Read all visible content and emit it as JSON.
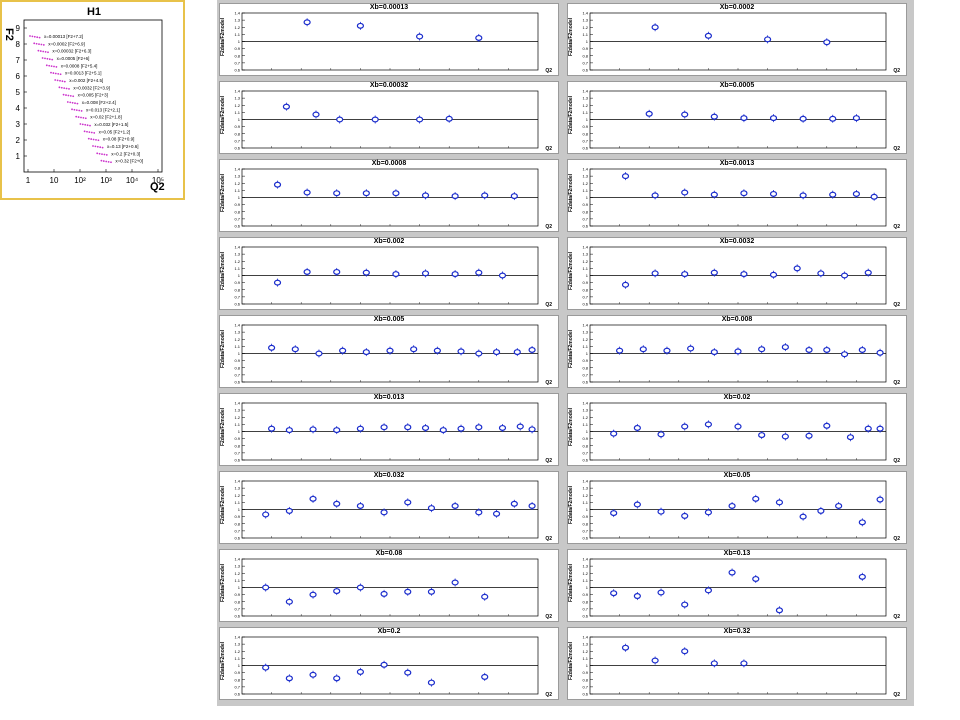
{
  "inset": {
    "title": "H1",
    "y_label": "F2",
    "x_label": "Q2",
    "y_ticks": [
      "1",
      "2",
      "3",
      "4",
      "5",
      "6",
      "7",
      "8",
      "9"
    ],
    "x_ticks": [
      "1",
      "10",
      "10²",
      "10³",
      "10⁴",
      "10⁵"
    ],
    "series_labels": [
      "x=0.00013 [F2+7.2]",
      "x=0.0002 [F2+6.9]",
      "x=0.00032 [F2+6.3]",
      "x=0.0005 [F2+6]",
      "x=0.0008 [F2+5.4]",
      "x=0.0013 [F2+5.1]",
      "x=0.002 [F2+4.5]",
      "x=0.0032 [F2+3.9]",
      "x=0.005 [F2+3]",
      "x=0.008 [F2+2.4]",
      "x=0.013 [F2+2.1]",
      "x=0.02 [F2+1.8]",
      "x=0.032 [F2+1.5]",
      "x=0.05 [F2+1.2]",
      "x=0.08 [F2+0.9]",
      "x=0.13 [F2+0.6]",
      "x=0.2 [F2+0.3]",
      "x=0.32 [F2+0]"
    ],
    "point_color": "#cc33cc"
  },
  "panel_common": {
    "y_label": "F2data/F2model",
    "x_label": "Q2",
    "y_ticks": [
      "0.6",
      "0.7",
      "0.8",
      "0.9",
      "1",
      "1.1",
      "1.2",
      "1.3",
      "1.4"
    ],
    "marker_color": "#1a2ccc"
  },
  "chart_data": {
    "type": "scatter",
    "ylim": [
      0.6,
      1.4
    ],
    "grid": false,
    "panels": [
      {
        "title": "Xb=0.00013",
        "points": [
          [
            0.22,
            1.27
          ],
          [
            0.4,
            1.22
          ],
          [
            0.6,
            1.07
          ],
          [
            0.8,
            1.05
          ]
        ]
      },
      {
        "title": "Xb=0.0002",
        "points": [
          [
            0.22,
            1.2
          ],
          [
            0.4,
            1.08
          ],
          [
            0.6,
            1.03
          ],
          [
            0.8,
            0.99
          ]
        ]
      },
      {
        "title": "Xb=0.00032",
        "points": [
          [
            0.15,
            1.18
          ],
          [
            0.25,
            1.07
          ],
          [
            0.33,
            1.0
          ],
          [
            0.45,
            1.0
          ],
          [
            0.6,
            1.0
          ],
          [
            0.7,
            1.01
          ]
        ]
      },
      {
        "title": "Xb=0.0005",
        "points": [
          [
            0.2,
            1.08
          ],
          [
            0.32,
            1.07
          ],
          [
            0.42,
            1.04
          ],
          [
            0.52,
            1.02
          ],
          [
            0.62,
            1.02
          ],
          [
            0.72,
            1.01
          ],
          [
            0.82,
            1.01
          ],
          [
            0.9,
            1.02
          ]
        ]
      },
      {
        "title": "Xb=0.0008",
        "points": [
          [
            0.12,
            1.18
          ],
          [
            0.22,
            1.07
          ],
          [
            0.32,
            1.06
          ],
          [
            0.42,
            1.06
          ],
          [
            0.52,
            1.06
          ],
          [
            0.62,
            1.03
          ],
          [
            0.72,
            1.02
          ],
          [
            0.82,
            1.03
          ],
          [
            0.92,
            1.02
          ]
        ]
      },
      {
        "title": "Xb=0.0013",
        "points": [
          [
            0.12,
            1.3
          ],
          [
            0.22,
            1.03
          ],
          [
            0.32,
            1.07
          ],
          [
            0.42,
            1.04
          ],
          [
            0.52,
            1.06
          ],
          [
            0.62,
            1.05
          ],
          [
            0.72,
            1.03
          ],
          [
            0.82,
            1.04
          ],
          [
            0.9,
            1.05
          ],
          [
            0.96,
            1.01
          ]
        ]
      },
      {
        "title": "Xb=0.002",
        "points": [
          [
            0.12,
            0.9
          ],
          [
            0.22,
            1.05
          ],
          [
            0.32,
            1.05
          ],
          [
            0.42,
            1.04
          ],
          [
            0.52,
            1.02
          ],
          [
            0.62,
            1.03
          ],
          [
            0.72,
            1.02
          ],
          [
            0.8,
            1.04
          ],
          [
            0.88,
            1.0
          ]
        ]
      },
      {
        "title": "Xb=0.0032",
        "points": [
          [
            0.12,
            0.87
          ],
          [
            0.22,
            1.03
          ],
          [
            0.32,
            1.02
          ],
          [
            0.42,
            1.04
          ],
          [
            0.52,
            1.02
          ],
          [
            0.62,
            1.01
          ],
          [
            0.7,
            1.1
          ],
          [
            0.78,
            1.03
          ],
          [
            0.86,
            1.0
          ],
          [
            0.94,
            1.04
          ]
        ]
      },
      {
        "title": "Xb=0.005",
        "points": [
          [
            0.1,
            1.08
          ],
          [
            0.18,
            1.06
          ],
          [
            0.26,
            1.0
          ],
          [
            0.34,
            1.04
          ],
          [
            0.42,
            1.02
          ],
          [
            0.5,
            1.04
          ],
          [
            0.58,
            1.06
          ],
          [
            0.66,
            1.04
          ],
          [
            0.74,
            1.03
          ],
          [
            0.8,
            1.0
          ],
          [
            0.86,
            1.02
          ],
          [
            0.93,
            1.02
          ],
          [
            0.98,
            1.05
          ]
        ]
      },
      {
        "title": "Xb=0.008",
        "points": [
          [
            0.1,
            1.04
          ],
          [
            0.18,
            1.06
          ],
          [
            0.26,
            1.04
          ],
          [
            0.34,
            1.07
          ],
          [
            0.42,
            1.02
          ],
          [
            0.5,
            1.03
          ],
          [
            0.58,
            1.06
          ],
          [
            0.66,
            1.09
          ],
          [
            0.74,
            1.05
          ],
          [
            0.8,
            1.05
          ],
          [
            0.86,
            0.99
          ],
          [
            0.92,
            1.05
          ],
          [
            0.98,
            1.01
          ]
        ]
      },
      {
        "title": "Xb=0.013",
        "points": [
          [
            0.1,
            1.04
          ],
          [
            0.16,
            1.02
          ],
          [
            0.24,
            1.03
          ],
          [
            0.32,
            1.02
          ],
          [
            0.4,
            1.04
          ],
          [
            0.48,
            1.06
          ],
          [
            0.56,
            1.06
          ],
          [
            0.62,
            1.05
          ],
          [
            0.68,
            1.02
          ],
          [
            0.74,
            1.04
          ],
          [
            0.8,
            1.06
          ],
          [
            0.88,
            1.05
          ],
          [
            0.94,
            1.07
          ],
          [
            0.98,
            1.03
          ]
        ]
      },
      {
        "title": "Xb=0.02",
        "points": [
          [
            0.08,
            0.97
          ],
          [
            0.16,
            1.05
          ],
          [
            0.24,
            0.96
          ],
          [
            0.32,
            1.07
          ],
          [
            0.4,
            1.1
          ],
          [
            0.5,
            1.07
          ],
          [
            0.58,
            0.95
          ],
          [
            0.66,
            0.93
          ],
          [
            0.74,
            0.94
          ],
          [
            0.8,
            1.08
          ],
          [
            0.88,
            0.92
          ],
          [
            0.94,
            1.04
          ],
          [
            0.98,
            1.04
          ]
        ]
      },
      {
        "title": "Xb=0.032",
        "points": [
          [
            0.08,
            0.93
          ],
          [
            0.16,
            0.98
          ],
          [
            0.24,
            1.15
          ],
          [
            0.32,
            1.08
          ],
          [
            0.4,
            1.05
          ],
          [
            0.48,
            0.96
          ],
          [
            0.56,
            1.1
          ],
          [
            0.64,
            1.02
          ],
          [
            0.72,
            1.05
          ],
          [
            0.8,
            0.96
          ],
          [
            0.86,
            0.94
          ],
          [
            0.92,
            1.08
          ],
          [
            0.98,
            1.05
          ]
        ]
      },
      {
        "title": "Xb=0.05",
        "points": [
          [
            0.08,
            0.95
          ],
          [
            0.16,
            1.07
          ],
          [
            0.24,
            0.97
          ],
          [
            0.32,
            0.91
          ],
          [
            0.4,
            0.96
          ],
          [
            0.48,
            1.05
          ],
          [
            0.56,
            1.15
          ],
          [
            0.64,
            1.1
          ],
          [
            0.72,
            0.9
          ],
          [
            0.78,
            0.98
          ],
          [
            0.84,
            1.05
          ],
          [
            0.92,
            0.82
          ],
          [
            0.98,
            1.14
          ]
        ]
      },
      {
        "title": "Xb=0.08",
        "points": [
          [
            0.08,
            1.0
          ],
          [
            0.16,
            0.8
          ],
          [
            0.24,
            0.9
          ],
          [
            0.32,
            0.95
          ],
          [
            0.4,
            1.0
          ],
          [
            0.48,
            0.91
          ],
          [
            0.56,
            0.94
          ],
          [
            0.64,
            0.94
          ],
          [
            0.72,
            1.07
          ],
          [
            0.82,
            0.87
          ]
        ]
      },
      {
        "title": "Xb=0.13",
        "points": [
          [
            0.08,
            0.92
          ],
          [
            0.16,
            0.88
          ],
          [
            0.24,
            0.93
          ],
          [
            0.32,
            0.76
          ],
          [
            0.4,
            0.96
          ],
          [
            0.48,
            1.21
          ],
          [
            0.56,
            1.12
          ],
          [
            0.64,
            0.68
          ],
          [
            0.92,
            1.15
          ]
        ]
      },
      {
        "title": "Xb=0.2",
        "points": [
          [
            0.08,
            0.97
          ],
          [
            0.16,
            0.82
          ],
          [
            0.24,
            0.87
          ],
          [
            0.32,
            0.82
          ],
          [
            0.4,
            0.91
          ],
          [
            0.48,
            1.01
          ],
          [
            0.56,
            0.9
          ],
          [
            0.64,
            0.76
          ],
          [
            0.82,
            0.84
          ]
        ]
      },
      {
        "title": "Xb=0.32",
        "points": [
          [
            0.12,
            1.25
          ],
          [
            0.22,
            1.07
          ],
          [
            0.32,
            1.2
          ],
          [
            0.42,
            1.03
          ],
          [
            0.52,
            1.03
          ]
        ]
      }
    ]
  }
}
